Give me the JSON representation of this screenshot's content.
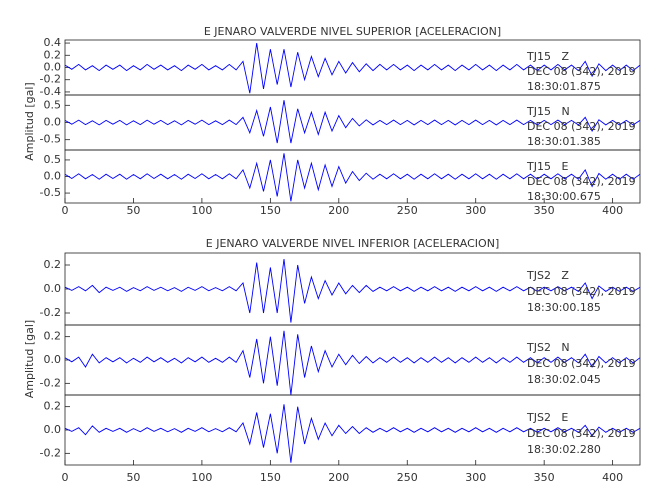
{
  "chart_data": [
    {
      "type": "line",
      "title": "E JENARO VALVERDE NIVEL SUPERIOR [ACELERACION]",
      "ylabel": "Amplitud [gal]",
      "color": "#0000ff",
      "xlim": [
        0,
        420
      ],
      "xticks": [
        0,
        50,
        100,
        150,
        200,
        250,
        300,
        350,
        400
      ],
      "x": [
        0,
        5,
        10,
        15,
        20,
        25,
        30,
        35,
        40,
        45,
        50,
        55,
        60,
        65,
        70,
        75,
        80,
        85,
        90,
        95,
        100,
        105,
        110,
        115,
        120,
        125,
        130,
        135,
        140,
        145,
        150,
        155,
        160,
        165,
        170,
        175,
        180,
        185,
        190,
        195,
        200,
        205,
        210,
        215,
        220,
        225,
        230,
        235,
        240,
        245,
        250,
        255,
        260,
        265,
        270,
        275,
        280,
        285,
        290,
        295,
        300,
        305,
        310,
        315,
        320,
        325,
        330,
        335,
        340,
        345,
        350,
        355,
        360,
        365,
        370,
        375,
        380,
        385,
        390,
        395,
        400,
        405,
        410,
        415,
        420
      ],
      "panels": [
        {
          "annotation": [
            "TJ15   Z",
            "DEC 08 (342), 2019",
            "18:30:01.875"
          ],
          "ylim": [
            -0.45,
            0.45
          ],
          "yticks": [
            0.4,
            0.2,
            {
              "value": 0,
              "label": "0.0"
            },
            -0.2,
            -0.4
          ],
          "values": [
            0.04,
            -0.03,
            0.05,
            -0.04,
            0.03,
            -0.05,
            0.04,
            -0.03,
            0.04,
            -0.05,
            0.03,
            -0.04,
            0.05,
            -0.03,
            0.04,
            -0.04,
            0.03,
            -0.05,
            0.04,
            -0.03,
            0.05,
            -0.04,
            0.03,
            -0.04,
            0.05,
            -0.04,
            0.1,
            -0.42,
            0.4,
            -0.35,
            0.3,
            -0.28,
            0.3,
            -0.32,
            0.25,
            -0.2,
            0.18,
            -0.15,
            0.15,
            -0.12,
            0.1,
            -0.09,
            0.08,
            -0.07,
            0.06,
            -0.05,
            0.05,
            -0.04,
            0.05,
            -0.04,
            0.04,
            -0.05,
            0.04,
            -0.04,
            0.05,
            -0.04,
            0.04,
            -0.05,
            0.04,
            -0.04,
            0.05,
            -0.04,
            0.04,
            -0.05,
            0.04,
            -0.04,
            0.05,
            -0.04,
            0.04,
            -0.05,
            0.04,
            -0.04,
            0.05,
            -0.04,
            0.04,
            -0.05,
            0.1,
            -0.14,
            0.06,
            -0.05,
            0.04,
            -0.05,
            0.04,
            -0.05,
            0.04
          ]
        },
        {
          "annotation": [
            "TJ15   N",
            "DEC 08 (342), 2019",
            "18:30:01.385"
          ],
          "ylim": [
            -0.8,
            0.8
          ],
          "yticks": [
            0.5,
            {
              "value": 0,
              "label": "0.0"
            },
            -0.5
          ],
          "values": [
            0.06,
            -0.05,
            0.07,
            -0.06,
            0.05,
            -0.07,
            0.06,
            -0.05,
            0.06,
            -0.07,
            0.05,
            -0.06,
            0.07,
            -0.05,
            0.06,
            -0.06,
            0.05,
            -0.07,
            0.06,
            -0.05,
            0.07,
            -0.06,
            0.05,
            -0.06,
            0.07,
            -0.06,
            0.15,
            -0.3,
            0.35,
            -0.4,
            0.45,
            -0.6,
            0.65,
            -0.6,
            0.4,
            -0.3,
            0.3,
            -0.35,
            0.3,
            -0.25,
            0.2,
            -0.15,
            0.12,
            -0.1,
            0.08,
            -0.07,
            0.06,
            -0.06,
            0.07,
            -0.06,
            0.06,
            -0.07,
            0.06,
            -0.06,
            0.07,
            -0.06,
            0.06,
            -0.07,
            0.06,
            -0.06,
            0.07,
            -0.06,
            0.06,
            -0.07,
            0.06,
            -0.06,
            0.07,
            -0.06,
            0.06,
            -0.07,
            0.06,
            -0.06,
            0.07,
            -0.06,
            0.06,
            -0.07,
            0.15,
            -0.25,
            0.08,
            -0.07,
            0.06,
            -0.07,
            0.06,
            -0.07,
            0.06
          ]
        },
        {
          "annotation": [
            "TJ15   E",
            "DEC 08 (342), 2019",
            "18:30:00.675"
          ],
          "ylim": [
            -0.8,
            0.8
          ],
          "yticks": [
            0.5,
            {
              "value": 0,
              "label": "0.0"
            },
            -0.5
          ],
          "values": [
            0.07,
            -0.06,
            0.08,
            -0.07,
            0.06,
            -0.08,
            0.07,
            -0.06,
            0.07,
            -0.08,
            0.06,
            -0.07,
            0.08,
            -0.06,
            0.07,
            -0.07,
            0.06,
            -0.08,
            0.07,
            -0.06,
            0.08,
            -0.07,
            0.06,
            -0.07,
            0.08,
            -0.07,
            0.2,
            -0.35,
            0.4,
            -0.45,
            0.5,
            -0.6,
            0.7,
            -0.75,
            0.5,
            -0.35,
            0.4,
            -0.4,
            0.35,
            -0.3,
            0.3,
            -0.2,
            0.15,
            -0.12,
            0.1,
            -0.08,
            0.07,
            -0.07,
            0.08,
            -0.07,
            0.07,
            -0.08,
            0.07,
            -0.07,
            0.08,
            -0.07,
            0.07,
            -0.08,
            0.07,
            -0.07,
            0.08,
            -0.07,
            0.07,
            -0.08,
            0.07,
            -0.07,
            0.08,
            -0.07,
            0.07,
            -0.08,
            0.07,
            -0.07,
            0.08,
            -0.07,
            0.07,
            -0.08,
            0.2,
            -0.3,
            0.09,
            -0.08,
            0.07,
            -0.08,
            0.07,
            -0.08,
            0.07
          ]
        }
      ]
    },
    {
      "type": "line",
      "title": "E JENARO VALVERDE NIVEL INFERIOR [ACELERACION]",
      "ylabel": "Amplitud [gal]",
      "color": "#0000ff",
      "xlim": [
        0,
        420
      ],
      "xticks": [
        0,
        50,
        100,
        150,
        200,
        250,
        300,
        350,
        400
      ],
      "x": [
        0,
        5,
        10,
        15,
        20,
        25,
        30,
        35,
        40,
        45,
        50,
        55,
        60,
        65,
        70,
        75,
        80,
        85,
        90,
        95,
        100,
        105,
        110,
        115,
        120,
        125,
        130,
        135,
        140,
        145,
        150,
        155,
        160,
        165,
        170,
        175,
        180,
        185,
        190,
        195,
        200,
        205,
        210,
        215,
        220,
        225,
        230,
        235,
        240,
        245,
        250,
        255,
        260,
        265,
        270,
        275,
        280,
        285,
        290,
        295,
        300,
        305,
        310,
        315,
        320,
        325,
        330,
        335,
        340,
        345,
        350,
        355,
        360,
        365,
        370,
        375,
        380,
        385,
        390,
        395,
        400,
        405,
        410,
        415,
        420
      ],
      "panels": [
        {
          "annotation": [
            "TJS2   Z",
            "DEC 08 (342), 2019",
            "18:30:00.185"
          ],
          "ylim": [
            -0.3,
            0.3
          ],
          "yticks": [
            0.2,
            {
              "value": 0,
              "label": "0.0"
            },
            -0.2
          ],
          "values": [
            0.015,
            -0.012,
            0.02,
            -0.015,
            0.03,
            -0.03,
            0.015,
            -0.012,
            0.015,
            -0.02,
            0.012,
            -0.015,
            0.02,
            -0.012,
            0.015,
            -0.015,
            0.012,
            -0.02,
            0.015,
            -0.012,
            0.02,
            -0.015,
            0.012,
            -0.015,
            0.02,
            -0.015,
            0.05,
            -0.2,
            0.22,
            -0.2,
            0.18,
            -0.2,
            0.25,
            -0.28,
            0.2,
            -0.12,
            0.1,
            -0.08,
            0.07,
            -0.05,
            0.05,
            -0.04,
            0.03,
            -0.03,
            0.03,
            -0.02,
            0.015,
            -0.015,
            0.02,
            -0.015,
            0.015,
            -0.02,
            0.015,
            -0.015,
            0.02,
            -0.015,
            0.015,
            -0.02,
            0.015,
            -0.015,
            0.02,
            -0.015,
            0.015,
            -0.02,
            0.015,
            -0.015,
            0.02,
            -0.015,
            0.015,
            -0.02,
            0.015,
            -0.015,
            0.02,
            -0.015,
            0.015,
            -0.02,
            0.05,
            -0.08,
            0.025,
            -0.02,
            0.015,
            -0.02,
            0.015,
            -0.02,
            0.015
          ]
        },
        {
          "annotation": [
            "TJS2   N",
            "DEC 08 (342), 2019",
            "18:30:02.045"
          ],
          "ylim": [
            -0.3,
            0.3
          ],
          "yticks": [
            0.2,
            {
              "value": 0,
              "label": "0.0"
            },
            -0.2
          ],
          "values": [
            0.02,
            -0.015,
            0.025,
            -0.06,
            0.05,
            -0.025,
            0.02,
            -0.015,
            0.02,
            -0.025,
            0.015,
            -0.02,
            0.025,
            -0.015,
            0.02,
            -0.02,
            0.015,
            -0.025,
            0.02,
            -0.015,
            0.025,
            -0.02,
            0.015,
            -0.02,
            0.025,
            -0.02,
            0.08,
            -0.15,
            0.18,
            -0.2,
            0.2,
            -0.22,
            0.25,
            -0.3,
            0.22,
            -0.15,
            0.12,
            -0.1,
            0.08,
            -0.06,
            0.05,
            -0.04,
            0.04,
            -0.03,
            0.03,
            -0.025,
            0.02,
            -0.02,
            0.025,
            -0.02,
            0.02,
            -0.025,
            0.02,
            -0.02,
            0.025,
            -0.02,
            0.02,
            -0.025,
            0.02,
            -0.02,
            0.025,
            -0.02,
            0.02,
            -0.025,
            0.02,
            -0.02,
            0.025,
            -0.02,
            0.02,
            -0.025,
            0.02,
            -0.02,
            0.025,
            -0.02,
            0.02,
            -0.025,
            0.05,
            -0.06,
            0.03,
            -0.025,
            0.02,
            -0.025,
            0.02,
            -0.025,
            0.02
          ]
        },
        {
          "annotation": [
            "TJS2   E",
            "DEC 08 (342), 2019",
            "18:30:02.280"
          ],
          "ylim": [
            -0.3,
            0.3
          ],
          "yticks": [
            0.2,
            {
              "value": 0,
              "label": "0.0"
            },
            -0.2
          ],
          "values": [
            0.015,
            -0.012,
            0.02,
            -0.04,
            0.035,
            -0.02,
            0.015,
            -0.012,
            0.015,
            -0.02,
            0.012,
            -0.015,
            0.02,
            -0.012,
            0.015,
            -0.015,
            0.012,
            -0.02,
            0.015,
            -0.012,
            0.02,
            -0.015,
            0.012,
            -0.015,
            0.02,
            -0.015,
            0.06,
            -0.12,
            0.15,
            -0.15,
            0.14,
            -0.2,
            0.22,
            -0.28,
            0.2,
            -0.12,
            0.1,
            -0.08,
            0.06,
            -0.05,
            0.04,
            -0.03,
            0.03,
            -0.03,
            0.02,
            -0.02,
            0.015,
            -0.015,
            0.02,
            -0.015,
            0.015,
            -0.02,
            0.015,
            -0.015,
            0.02,
            -0.015,
            0.015,
            -0.02,
            0.015,
            -0.015,
            0.02,
            -0.015,
            0.015,
            -0.02,
            0.015,
            -0.015,
            0.02,
            -0.015,
            0.015,
            -0.02,
            0.015,
            -0.015,
            0.02,
            -0.015,
            0.015,
            -0.02,
            0.04,
            -0.05,
            0.025,
            -0.02,
            0.015,
            -0.02,
            0.015,
            -0.02,
            0.015
          ]
        }
      ]
    }
  ]
}
